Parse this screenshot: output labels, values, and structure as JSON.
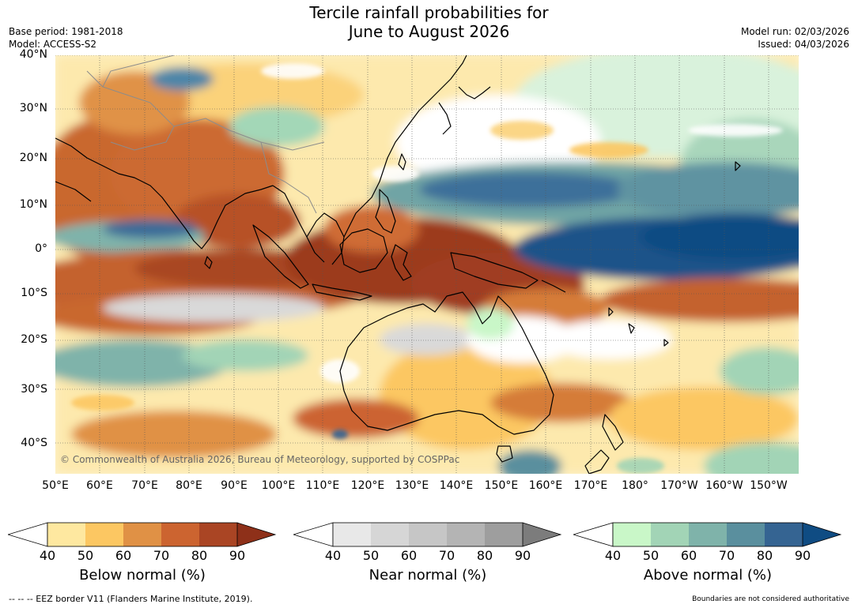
{
  "title": {
    "line1": "Tercile rainfall probabilities for",
    "line2": "June to August 2026"
  },
  "meta": {
    "base_period": "Base period: 1981-2018",
    "model": "Model: ACCESS-S2",
    "model_run": "Model run: 02/03/2026",
    "issued": "Issued: 04/03/2026"
  },
  "map": {
    "latitude_ticks": [
      "40°N",
      "30°N",
      "20°N",
      "10°N",
      "0°",
      "10°S",
      "20°S",
      "30°S",
      "40°S"
    ],
    "longitude_ticks": [
      "50°E",
      "60°E",
      "70°E",
      "80°E",
      "90°E",
      "100°E",
      "110°E",
      "120°E",
      "130°E",
      "140°E",
      "150°E",
      "160°E",
      "170°E",
      "180°",
      "170°W",
      "160°W",
      "150°W"
    ],
    "copyright": "© Commonwealth of Australia 2026, Bureau of Meteorology, supported by COSPPac",
    "colors": {
      "ocean_base": "#ffffff",
      "land_outline": "#000000",
      "border": "#8c8c8c"
    }
  },
  "colorbars": [
    {
      "label": "Below normal (%)",
      "ticks": [
        "40",
        "50",
        "60",
        "70",
        "80",
        "90"
      ],
      "colors": [
        "#ffffff",
        "#fee8a0",
        "#fcc762",
        "#e09145",
        "#cc6430",
        "#aa4524",
        "#8e3019"
      ]
    },
    {
      "label": "Near normal (%)",
      "ticks": [
        "40",
        "50",
        "60",
        "70",
        "80",
        "90"
      ],
      "colors": [
        "#ffffff",
        "#e8e8e8",
        "#d6d6d6",
        "#c6c6c6",
        "#b4b4b4",
        "#9e9e9e",
        "#7c7c7c"
      ]
    },
    {
      "label": "Above normal (%)",
      "ticks": [
        "40",
        "50",
        "60",
        "70",
        "80",
        "90"
      ],
      "colors": [
        "#ffffff",
        "#c9f7c8",
        "#a2d4b6",
        "#7fb3aa",
        "#5a8f9e",
        "#356492",
        "#0f4c83"
      ]
    }
  ],
  "footer": {
    "eez": "--  --  -- EEZ border V11 (Flanders Marine Institute, 2019).",
    "disclaimer": "Boundaries are not considered authoritative"
  }
}
